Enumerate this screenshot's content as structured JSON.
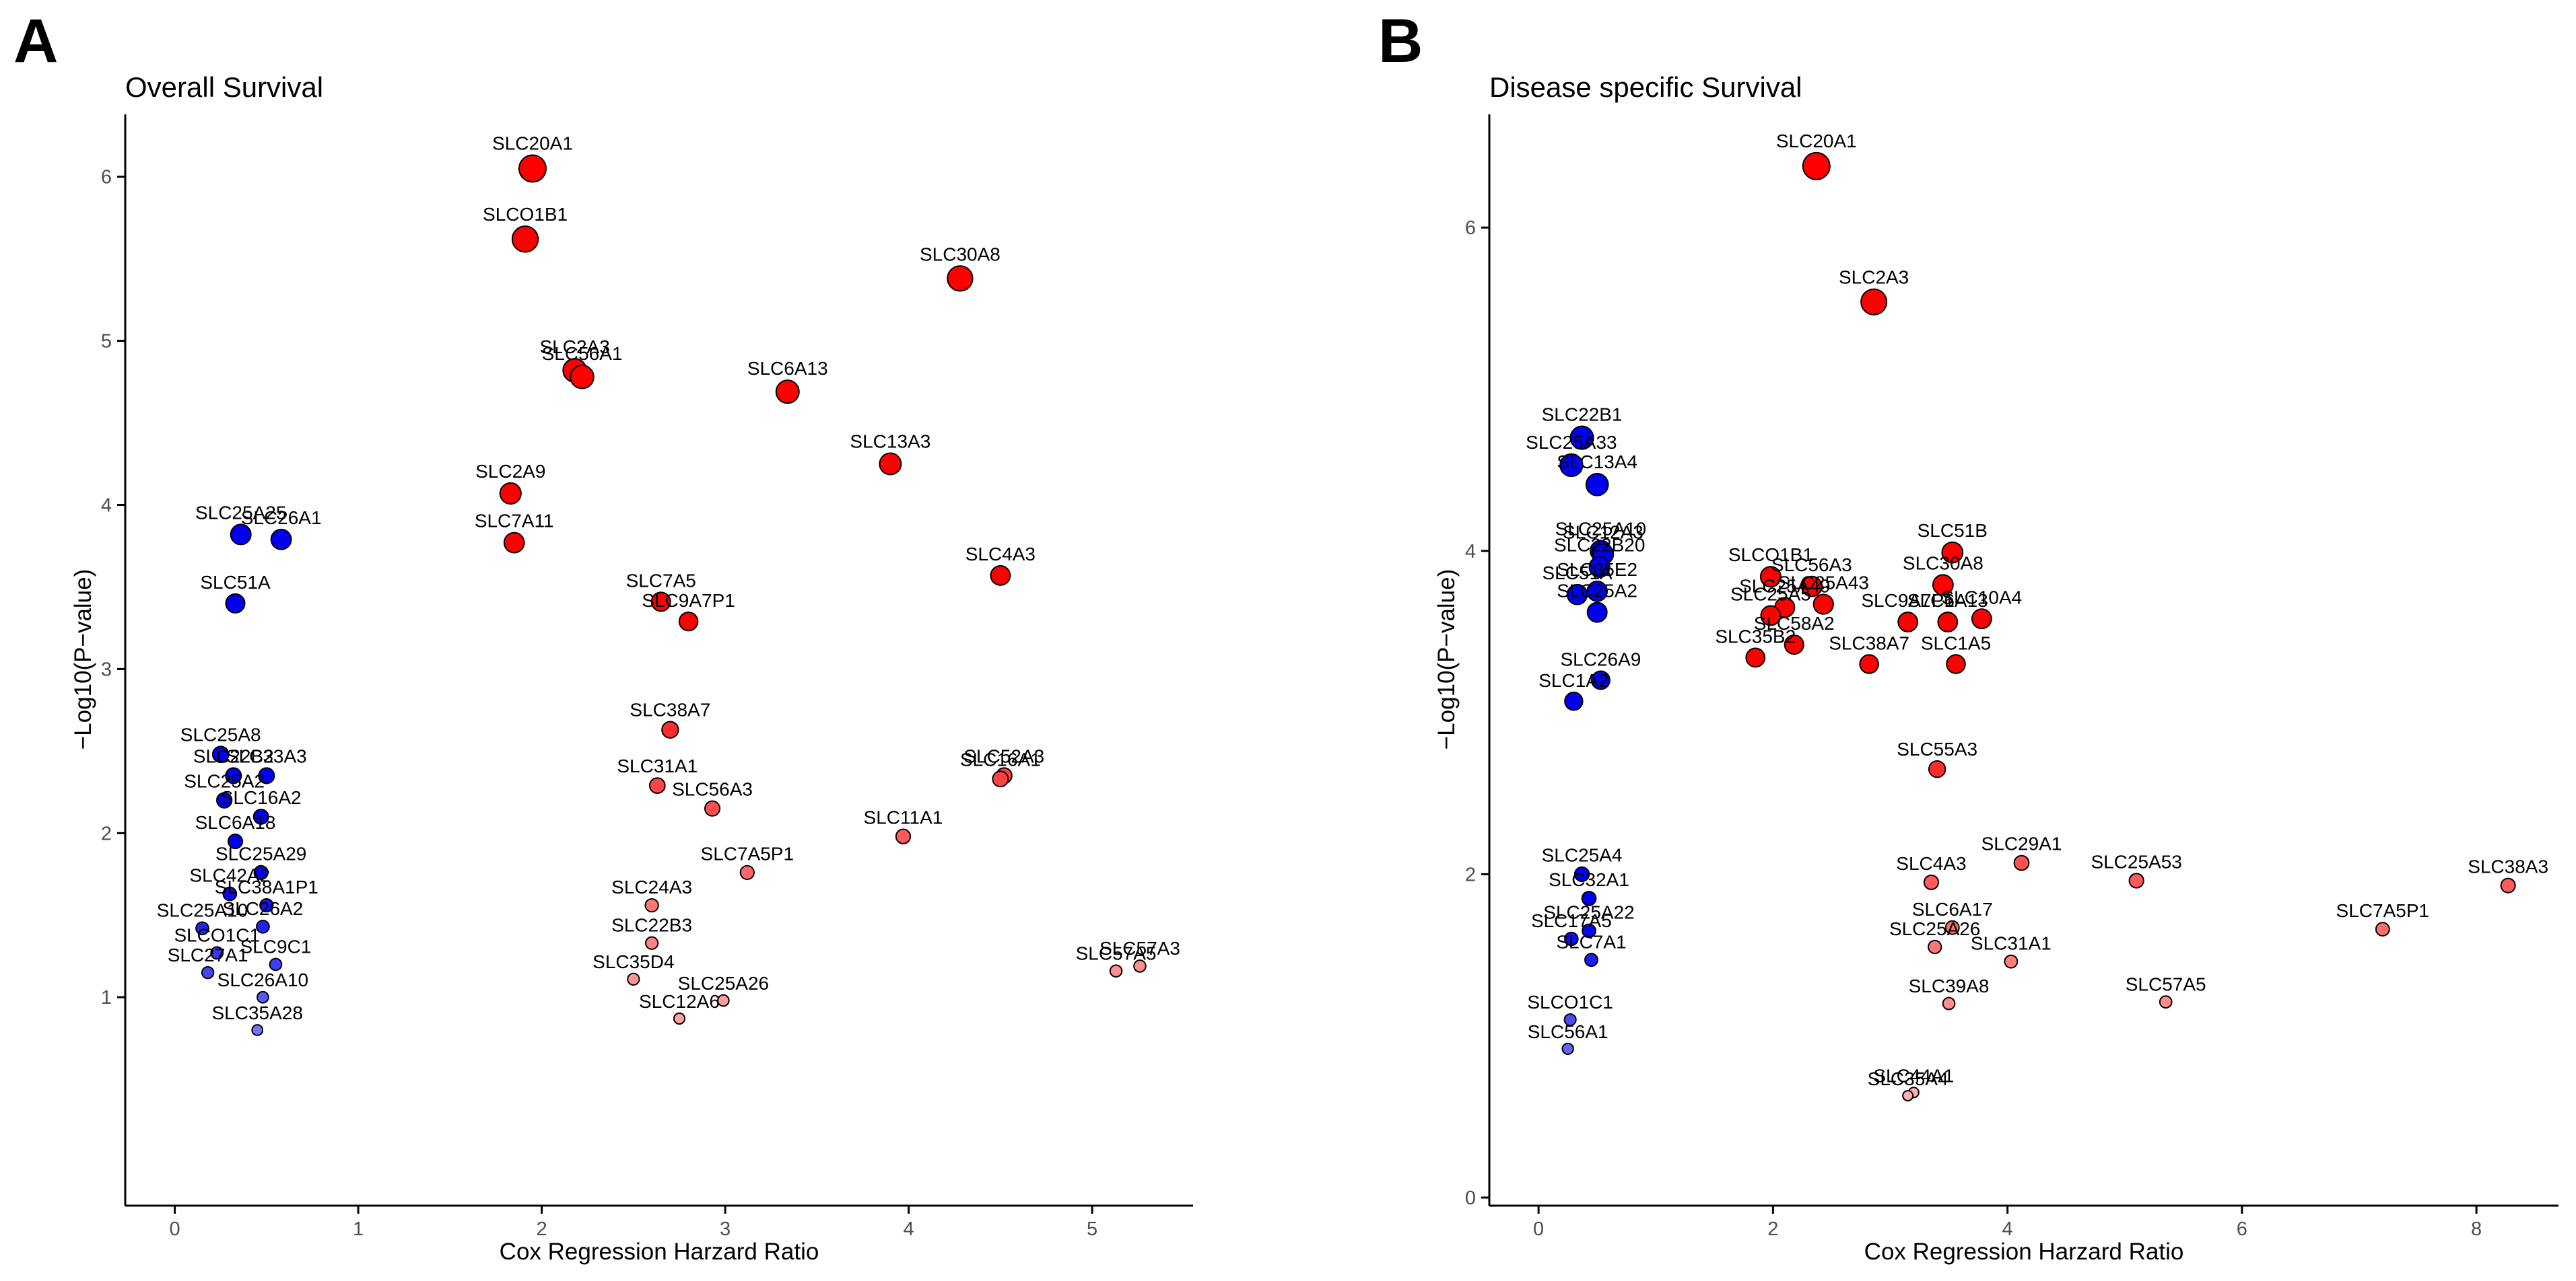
{
  "colors": {
    "sig_pos": "#ff0000",
    "sig_neg": "#0000ee",
    "light_pos": "#ffb0b0",
    "light_neg": "#8c8cff",
    "outline": "#000000",
    "axis": "#000000",
    "text": "#000000",
    "tick_text": "#4d4d4d"
  },
  "chart_data": [
    {
      "type": "scatter",
      "panel_letter": "A",
      "title": "Overall Survival",
      "xlabel": "Cox Regression Harzard Ratio",
      "ylabel": "−Log10(P−value)",
      "xlim": [
        -0.27,
        5.55
      ],
      "ylim": [
        -0.27,
        6.38
      ],
      "xticks": [
        0,
        1,
        2,
        3,
        4,
        5
      ],
      "yticks": [
        1,
        2,
        3,
        4,
        5,
        6
      ],
      "grid": false,
      "labeled_points": [
        {
          "label": "SLC20A1",
          "x": 1.95,
          "y": 6.05
        },
        {
          "label": "SLCO1B1",
          "x": 1.91,
          "y": 5.62
        },
        {
          "label": "SLC30A8",
          "x": 4.28,
          "y": 5.38
        },
        {
          "label": "SLC2A3",
          "x": 2.18,
          "y": 4.82
        },
        {
          "label": "SLC56A1",
          "x": 2.22,
          "y": 4.78
        },
        {
          "label": "SLC6A13",
          "x": 3.34,
          "y": 4.69
        },
        {
          "label": "SLC13A3",
          "x": 3.9,
          "y": 4.25
        },
        {
          "label": "SLC2A9",
          "x": 1.83,
          "y": 4.07
        },
        {
          "label": "SLC7A11",
          "x": 1.85,
          "y": 3.77
        },
        {
          "label": "SLC4A3",
          "x": 4.5,
          "y": 3.57
        },
        {
          "label": "SLC7A5",
          "x": 2.65,
          "y": 3.41
        },
        {
          "label": "SLC9A7P1",
          "x": 2.8,
          "y": 3.29
        },
        {
          "label": "SLC38A7",
          "x": 2.7,
          "y": 2.63
        },
        {
          "label": "SLC31A1",
          "x": 2.63,
          "y": 2.29
        },
        {
          "label": "SLC52A3",
          "x": 4.52,
          "y": 2.35
        },
        {
          "label": "SLC16A1",
          "x": 4.5,
          "y": 2.33
        },
        {
          "label": "SLC56A3",
          "x": 2.93,
          "y": 2.15
        },
        {
          "label": "SLC11A1",
          "x": 3.97,
          "y": 1.98
        },
        {
          "label": "SLC7A5P1",
          "x": 3.12,
          "y": 1.76
        },
        {
          "label": "SLC24A3",
          "x": 2.6,
          "y": 1.56
        },
        {
          "label": "SLC22B3",
          "x": 2.6,
          "y": 1.33
        },
        {
          "label": "SLC57A3",
          "x": 5.26,
          "y": 1.19
        },
        {
          "label": "SLC57A5",
          "x": 5.13,
          "y": 1.16
        },
        {
          "label": "SLC25A26",
          "x": 2.99,
          "y": 0.98
        },
        {
          "label": "SLC35D4",
          "x": 2.5,
          "y": 1.11
        },
        {
          "label": "SLC12A6",
          "x": 2.75,
          "y": 0.87
        },
        {
          "label": "SLC26A1",
          "x": 0.58,
          "y": 3.79
        },
        {
          "label": "SLC25A25",
          "x": 0.36,
          "y": 3.82
        },
        {
          "label": "SLC51A",
          "x": 0.33,
          "y": 3.4
        },
        {
          "label": "SLC25A8",
          "x": 0.25,
          "y": 2.48
        },
        {
          "label": "SLC22B2",
          "x": 0.32,
          "y": 2.35
        },
        {
          "label": "SLC33A3",
          "x": 0.5,
          "y": 2.35
        },
        {
          "label": "SLC25A2",
          "x": 0.27,
          "y": 2.2
        },
        {
          "label": "SLC16A2",
          "x": 0.47,
          "y": 2.1
        },
        {
          "label": "SLC6A18",
          "x": 0.33,
          "y": 1.95
        },
        {
          "label": "SLC25A29",
          "x": 0.47,
          "y": 1.76
        },
        {
          "label": "SLC42A2",
          "x": 0.3,
          "y": 1.63
        },
        {
          "label": "SLC38A1P1",
          "x": 0.5,
          "y": 1.56
        },
        {
          "label": "SLC25A10",
          "x": 0.15,
          "y": 1.42
        },
        {
          "label": "SLC26A2",
          "x": 0.48,
          "y": 1.43
        },
        {
          "label": "SLCO1C1",
          "x": 0.23,
          "y": 1.27
        },
        {
          "label": "SLC9C1",
          "x": 0.55,
          "y": 1.2
        },
        {
          "label": "SLC27A1",
          "x": 0.18,
          "y": 1.15
        },
        {
          "label": "SLC26A10",
          "x": 0.48,
          "y": 1.0
        },
        {
          "label": "SLC35A28",
          "x": 0.45,
          "y": 0.8
        }
      ]
    },
    {
      "type": "scatter",
      "panel_letter": "B",
      "title": "Disease specific Survival",
      "xlabel": "Cox Regression Harzard Ratio",
      "ylabel": "−Log10(P−value)",
      "xlim": [
        -0.42,
        8.7
      ],
      "ylim": [
        -0.05,
        6.7
      ],
      "xticks": [
        0,
        2,
        4,
        6,
        8
      ],
      "yticks": [
        0,
        2,
        4,
        6
      ],
      "grid": false,
      "labeled_points": [
        {
          "label": "SLC20A1",
          "x": 2.37,
          "y": 6.38
        },
        {
          "label": "SLC2A3",
          "x": 2.86,
          "y": 5.54
        },
        {
          "label": "SLC22B1",
          "x": 0.37,
          "y": 4.7
        },
        {
          "label": "SLC25A33",
          "x": 0.28,
          "y": 4.53
        },
        {
          "label": "SLC13A4",
          "x": 0.5,
          "y": 4.41
        },
        {
          "label": "SLC25A10",
          "x": 0.53,
          "y": 4.0
        },
        {
          "label": "SLC12A3",
          "x": 0.55,
          "y": 3.98
        },
        {
          "label": "SLC22B20",
          "x": 0.52,
          "y": 3.9
        },
        {
          "label": "SLCO1B1",
          "x": 1.98,
          "y": 3.84
        },
        {
          "label": "SLC51B",
          "x": 3.53,
          "y": 3.99
        },
        {
          "label": "SLC56A3",
          "x": 2.33,
          "y": 3.78
        },
        {
          "label": "SLC30A8",
          "x": 3.45,
          "y": 3.79
        },
        {
          "label": "SLC51A",
          "x": 0.33,
          "y": 3.73
        },
        {
          "label": "SLC35E2",
          "x": 0.5,
          "y": 3.75
        },
        {
          "label": "SLC25A49",
          "x": 2.1,
          "y": 3.65
        },
        {
          "label": "SLC25A43",
          "x": 2.43,
          "y": 3.67
        },
        {
          "label": "SLC6A13",
          "x": 3.49,
          "y": 3.56
        },
        {
          "label": "SLC25A2",
          "x": 0.5,
          "y": 3.62
        },
        {
          "label": "SLC25A5",
          "x": 1.98,
          "y": 3.6
        },
        {
          "label": "SLC58A2",
          "x": 2.18,
          "y": 3.42
        },
        {
          "label": "SLC9A7P1",
          "x": 3.15,
          "y": 3.56
        },
        {
          "label": "SLC10A4",
          "x": 3.78,
          "y": 3.58
        },
        {
          "label": "SLC1A2",
          "x": 0.3,
          "y": 3.07
        },
        {
          "label": "SLC26A9",
          "x": 0.53,
          "y": 3.2
        },
        {
          "label": "SLC38A7",
          "x": 2.82,
          "y": 3.3
        },
        {
          "label": "SLC1A5",
          "x": 3.56,
          "y": 3.3
        },
        {
          "label": "SLC35B2",
          "x": 1.85,
          "y": 3.34
        },
        {
          "label": "SLC55A3",
          "x": 3.4,
          "y": 2.65
        },
        {
          "label": "SLC4A3",
          "x": 3.35,
          "y": 1.95
        },
        {
          "label": "SLC29A1",
          "x": 4.12,
          "y": 2.07
        },
        {
          "label": "SLC25A53",
          "x": 5.1,
          "y": 1.96
        },
        {
          "label": "SLC38A3",
          "x": 8.27,
          "y": 1.93
        },
        {
          "label": "SLC25A4",
          "x": 0.37,
          "y": 2.0
        },
        {
          "label": "SLC32A1",
          "x": 0.43,
          "y": 1.85
        },
        {
          "label": "SLC6A17",
          "x": 3.53,
          "y": 1.67
        },
        {
          "label": "SLC7A5P1",
          "x": 7.2,
          "y": 1.66
        },
        {
          "label": "SLC17A5",
          "x": 0.28,
          "y": 1.6
        },
        {
          "label": "SLC25A22",
          "x": 0.43,
          "y": 1.65
        },
        {
          "label": "SLC25A26",
          "x": 3.38,
          "y": 1.55
        },
        {
          "label": "SLC7A1",
          "x": 0.45,
          "y": 1.47
        },
        {
          "label": "SLC31A1",
          "x": 4.03,
          "y": 1.46
        },
        {
          "label": "SLC57A5",
          "x": 5.35,
          "y": 1.21
        },
        {
          "label": "SLC39A8",
          "x": 3.5,
          "y": 1.2
        },
        {
          "label": "SLCO1C1",
          "x": 0.27,
          "y": 1.1
        },
        {
          "label": "SLC56A1",
          "x": 0.25,
          "y": 0.92
        },
        {
          "label": "SLC44A1",
          "x": 3.2,
          "y": 0.65
        },
        {
          "label": "SLC35A4",
          "x": 3.15,
          "y": 0.63
        }
      ]
    }
  ]
}
